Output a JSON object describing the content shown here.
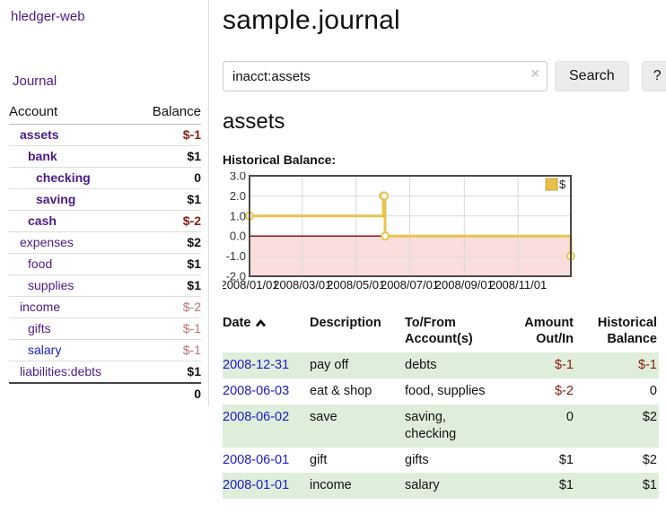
{
  "sidebar": {
    "brand": "hledger-web",
    "nav": {
      "journal": "Journal"
    },
    "accounts_table": {
      "col_account": "Account",
      "col_balance": "Balance",
      "rows": [
        {
          "name": "assets",
          "indent": 1,
          "strong": true,
          "link_style": "purple",
          "balance": "$-1",
          "balance_style": "neg-strong"
        },
        {
          "name": "bank",
          "indent": 2,
          "strong": true,
          "link_style": "purple",
          "balance": "$1",
          "balance_style": "pos"
        },
        {
          "name": "checking",
          "indent": 3,
          "strong": true,
          "link_style": "purple",
          "balance": "0",
          "balance_style": "pos"
        },
        {
          "name": "saving",
          "indent": 3,
          "strong": true,
          "link_style": "purple",
          "balance": "$1",
          "balance_style": "pos"
        },
        {
          "name": "cash",
          "indent": 2,
          "strong": true,
          "link_style": "purple",
          "balance": "$-2",
          "balance_style": "neg-strong"
        },
        {
          "name": "expenses",
          "indent": 1,
          "strong": false,
          "link_style": "purple",
          "balance": "$2",
          "balance_style": "pos"
        },
        {
          "name": "food",
          "indent": 2,
          "strong": false,
          "link_style": "purple",
          "balance": "$1",
          "balance_style": "pos"
        },
        {
          "name": "supplies",
          "indent": 2,
          "strong": false,
          "link_style": "purple",
          "balance": "$1",
          "balance_style": "pos"
        },
        {
          "name": "income",
          "indent": 1,
          "strong": false,
          "link_style": "purple",
          "balance": "$-2",
          "balance_style": "neg-soft"
        },
        {
          "name": "gifts",
          "indent": 2,
          "strong": false,
          "link_style": "purple",
          "balance": "$-1",
          "balance_style": "neg-soft"
        },
        {
          "name": "salary",
          "indent": 2,
          "strong": false,
          "link_style": "blue",
          "balance": "$-1",
          "balance_style": "neg-soft"
        },
        {
          "name": "liabilities:debts",
          "indent": 1,
          "strong": false,
          "link_style": "purple",
          "balance": "$1",
          "balance_style": "pos"
        }
      ],
      "total": "0"
    }
  },
  "header": {
    "title": "sample.journal"
  },
  "search": {
    "value": "inacct:assets",
    "clear_label": "×",
    "button": "Search",
    "help_button": "?"
  },
  "account_page": {
    "title": "assets",
    "chart_label": "Historical Balance:"
  },
  "chart_data": {
    "type": "line",
    "step": true,
    "title": "Historical Balance:",
    "legend": "$",
    "xlim": [
      "2008/01/01",
      "2008/12/31"
    ],
    "ylim": [
      -2,
      3
    ],
    "x_ticks": [
      "2008/01/01",
      "2008/03/01",
      "2008/05/01",
      "2008/07/01",
      "2008/09/01",
      "2008/11/01"
    ],
    "y_ticks": [
      3.0,
      2.0,
      1.0,
      0.0,
      -1.0,
      -2.0
    ],
    "series": [
      {
        "name": "$",
        "points": [
          [
            "2008/01/01",
            1
          ],
          [
            "2008/06/01",
            2
          ],
          [
            "2008/06/02",
            2
          ],
          [
            "2008/06/03",
            0
          ],
          [
            "2008/12/31",
            -1
          ]
        ]
      }
    ],
    "colors": {
      "line": "#e8c44c",
      "marker_fill": "#ffffff",
      "negative_region": "#fadddd",
      "zero_line": "#8b0000",
      "grid": "#d9d9d9",
      "border": "#4a4a4a",
      "legend_box": "#e6c048",
      "legend_box_border": "#c9a63c"
    }
  },
  "register": {
    "headers": {
      "date": "Date",
      "description": "Description",
      "accounts": "To/From Account(s)",
      "amount": "Amount Out/In",
      "balance": "Historical Balance"
    },
    "rows": [
      {
        "date": "2008-12-31",
        "description": "pay off",
        "accounts": "debts",
        "amount": "$-1",
        "amount_neg": true,
        "balance": "$-1",
        "balance_neg": true,
        "green": true
      },
      {
        "date": "2008-06-03",
        "description": "eat & shop",
        "accounts": "food, supplies",
        "amount": "$-2",
        "amount_neg": true,
        "balance": "0",
        "balance_neg": false,
        "green": false
      },
      {
        "date": "2008-06-02",
        "description": "save",
        "accounts": "saving, checking",
        "amount": "0",
        "amount_neg": false,
        "balance": "$2",
        "balance_neg": false,
        "green": true
      },
      {
        "date": "2008-06-01",
        "description": "gift",
        "accounts": "gifts",
        "amount": "$1",
        "amount_neg": false,
        "balance": "$2",
        "balance_neg": false,
        "green": false
      },
      {
        "date": "2008-01-01",
        "description": "income",
        "accounts": "salary",
        "amount": "$1",
        "amount_neg": false,
        "balance": "$1",
        "balance_neg": false,
        "green": true
      }
    ]
  }
}
